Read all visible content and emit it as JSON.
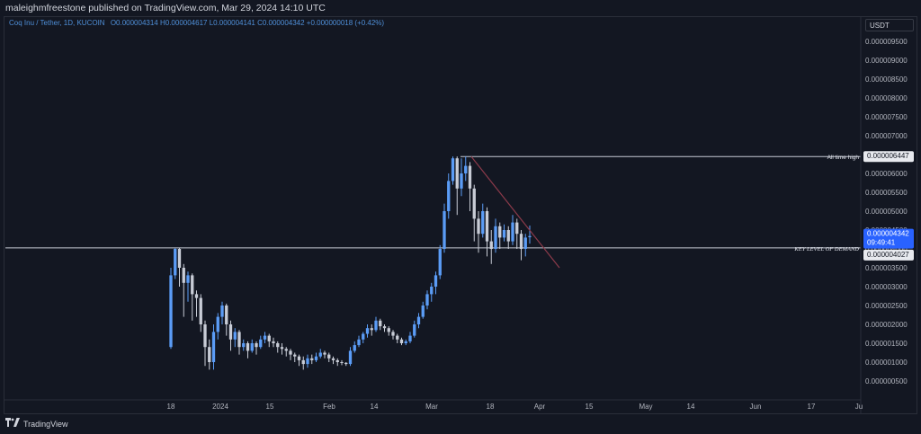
{
  "header": {
    "publisher_line": "maleighmfreestone published on TradingView.com, Mar 29, 2024 14:10 UTC"
  },
  "legend": {
    "symbol": "Coq Inu / Tether, 1D, KUCOIN",
    "values": "O0.000004314 H0.000004617 L0.000004141 C0.000004342 +0.000000018 (+0.42%)"
  },
  "currency_button": "USDT",
  "footer": {
    "brand": "TradingView"
  },
  "colors": {
    "background": "#131722",
    "candle_up": "#5b9cf6",
    "candle_down": "#c8ccd6",
    "price_label": "#2962ff",
    "trendline": "#8b3a4a",
    "hline": "#c8ccd6"
  },
  "chart_data": {
    "type": "candlestick",
    "title": "Coq Inu / Tether, 1D, KUCOIN",
    "y_axis_ticks": [
      "0.000009500",
      "0.000009000",
      "0.000008500",
      "0.000008000",
      "0.000007500",
      "0.000007000",
      "0.000006500",
      "0.000006000",
      "0.000005500",
      "0.000005000",
      "0.000004500",
      "0.000004000",
      "0.000003500",
      "0.000003000",
      "0.000002500",
      "0.000002000",
      "0.000001500",
      "0.000001000",
      "0.000000500"
    ],
    "x_axis_ticks": [
      "18",
      "2024",
      "15",
      "Feb",
      "14",
      "Mar",
      "18",
      "Apr",
      "15",
      "May",
      "14",
      "Jun",
      "17",
      "Ju"
    ],
    "ylim": [
      3e-07,
      9.8e-06
    ],
    "horizontal_lines": [
      {
        "label": "All time high",
        "value": 6.447e-06,
        "price_label": "0.000006447"
      },
      {
        "label": "KEY LEVEL OF DEMAND",
        "value": 4.027e-06,
        "price_label": "0.000004027"
      }
    ],
    "current_price": {
      "price": "0.000004342",
      "countdown": "09:49:41"
    },
    "trendline": {
      "from": [
        6.447e-06
      ],
      "to": [
        3.5e-06
      ]
    },
    "candles": [
      [
        1.4e-06,
        3.3e-06,
        3.5e-06,
        1.35e-06
      ],
      [
        3.3e-06,
        4e-06,
        4.02e-06,
        3.2e-06
      ],
      [
        4e-06,
        3.5e-06,
        4.02e-06,
        3e-06
      ],
      [
        3.5e-06,
        3.1e-06,
        3.6e-06,
        2.2e-06
      ],
      [
        3.1e-06,
        3.3e-06,
        3.4e-06,
        2.6e-06
      ],
      [
        3.3e-06,
        2.8e-06,
        3.35e-06,
        2.1e-06
      ],
      [
        2.8e-06,
        2.7e-06,
        2.9e-06,
        2.2e-06
      ],
      [
        2.7e-06,
        2e-06,
        2.8e-06,
        1.8e-06
      ],
      [
        2e-06,
        1.4e-06,
        2.1e-06,
        9e-07
      ],
      [
        1.4e-06,
        1e-06,
        1.6e-06,
        8e-07
      ],
      [
        1e-06,
        1.8e-06,
        2e-06,
        8e-07
      ],
      [
        1.8e-06,
        2.2e-06,
        2.3e-06,
        1.6e-06
      ],
      [
        2.2e-06,
        2.5e-06,
        2.6e-06,
        2e-06
      ],
      [
        2.5e-06,
        2e-06,
        2.55e-06,
        1.7e-06
      ],
      [
        2e-06,
        1.6e-06,
        2.1e-06,
        1.3e-06
      ],
      [
        1.6e-06,
        1.8e-06,
        1.9e-06,
        1.4e-06
      ],
      [
        1.8e-06,
        1.4e-06,
        1.85e-06,
        1.2e-06
      ],
      [
        1.4e-06,
        1.5e-06,
        1.6e-06,
        1.3e-06
      ],
      [
        1.5e-06,
        1.3e-06,
        1.55e-06,
        1.1e-06
      ],
      [
        1.3e-06,
        1.5e-06,
        1.6e-06,
        1.25e-06
      ],
      [
        1.5e-06,
        1.4e-06,
        1.55e-06,
        1.2e-06
      ],
      [
        1.4e-06,
        1.6e-06,
        1.7e-06,
        1.35e-06
      ],
      [
        1.6e-06,
        1.7e-06,
        1.8e-06,
        1.5e-06
      ],
      [
        1.7e-06,
        1.55e-06,
        1.75e-06,
        1.4e-06
      ],
      [
        1.55e-06,
        1.5e-06,
        1.65e-06,
        1.4e-06
      ],
      [
        1.5e-06,
        1.4e-06,
        1.55e-06,
        1.25e-06
      ],
      [
        1.4e-06,
        1.35e-06,
        1.5e-06,
        1.2e-06
      ],
      [
        1.35e-06,
        1.3e-06,
        1.4e-06,
        1.15e-06
      ],
      [
        1.3e-06,
        1.2e-06,
        1.35e-06,
        1.05e-06
      ],
      [
        1.2e-06,
        1.15e-06,
        1.25e-06,
        1e-06
      ],
      [
        1.15e-06,
        1.05e-06,
        1.2e-06,
        9e-07
      ],
      [
        1.05e-06,
        9.5e-07,
        1.15e-06,
        8e-07
      ],
      [
        9.5e-07,
        1.1e-06,
        1.2e-06,
        8.5e-07
      ],
      [
        1.1e-06,
        1.05e-06,
        1.2e-06,
        9.5e-07
      ],
      [
        1.05e-06,
        1.15e-06,
        1.25e-06,
        1e-06
      ],
      [
        1.15e-06,
        1.25e-06,
        1.35e-06,
        1.1e-06
      ],
      [
        1.25e-06,
        1.2e-06,
        1.3e-06,
        1.1e-06
      ],
      [
        1.2e-06,
        1.1e-06,
        1.25e-06,
        1e-06
      ],
      [
        1.1e-06,
        1.05e-06,
        1.15e-06,
        9.5e-07
      ],
      [
        1.05e-06,
        1e-06,
        1.1e-06,
        9e-07
      ],
      [
        1e-06,
        9.8e-07,
        1.05e-06,
        9.2e-07
      ],
      [
        9.8e-07,
        9.5e-07,
        1e-06,
        9e-07
      ],
      [
        9.5e-07,
        1.3e-06,
        1.4e-06,
        9e-07
      ],
      [
        1.3e-06,
        1.45e-06,
        1.55e-06,
        1.25e-06
      ],
      [
        1.45e-06,
        1.6e-06,
        1.7e-06,
        1.4e-06
      ],
      [
        1.6e-06,
        1.75e-06,
        1.8e-06,
        1.5e-06
      ],
      [
        1.75e-06,
        1.9e-06,
        2e-06,
        1.65e-06
      ],
      [
        1.9e-06,
        1.85e-06,
        2e-06,
        1.7e-06
      ],
      [
        1.85e-06,
        2.1e-06,
        2.2e-06,
        1.8e-06
      ],
      [
        2.1e-06,
        1.95e-06,
        2.15e-06,
        1.85e-06
      ],
      [
        1.95e-06,
        1.9e-06,
        2e-06,
        1.8e-06
      ],
      [
        1.9e-06,
        1.8e-06,
        1.95e-06,
        1.7e-06
      ],
      [
        1.8e-06,
        1.7e-06,
        1.85e-06,
        1.6e-06
      ],
      [
        1.7e-06,
        1.6e-06,
        1.75e-06,
        1.5e-06
      ],
      [
        1.6e-06,
        1.5e-06,
        1.65e-06,
        1.45e-06
      ],
      [
        1.5e-06,
        1.55e-06,
        1.6e-06,
        1.45e-06
      ],
      [
        1.55e-06,
        1.7e-06,
        1.8e-06,
        1.5e-06
      ],
      [
        1.7e-06,
        2e-06,
        2.1e-06,
        1.65e-06
      ],
      [
        2e-06,
        2.2e-06,
        2.3e-06,
        1.9e-06
      ],
      [
        2.2e-06,
        2.5e-06,
        2.6e-06,
        2.15e-06
      ],
      [
        2.5e-06,
        2.8e-06,
        2.9e-06,
        2.4e-06
      ],
      [
        2.8e-06,
        3e-06,
        3.1e-06,
        2.6e-06
      ],
      [
        3e-06,
        3.3e-06,
        3.4e-06,
        2.8e-06
      ],
      [
        3.3e-06,
        4e-06,
        4.1e-06,
        3.2e-06
      ],
      [
        4e-06,
        5e-06,
        5.2e-06,
        3.9e-06
      ],
      [
        5e-06,
        5.8e-06,
        6e-06,
        4.8e-06
      ],
      [
        5.8e-06,
        6.4e-06,
        6.45e-06,
        5.7e-06
      ],
      [
        6.4e-06,
        5.6e-06,
        6.45e-06,
        4.9e-06
      ],
      [
        5.6e-06,
        6e-06,
        6.4e-06,
        5.4e-06
      ],
      [
        6e-06,
        6.2e-06,
        6.45e-06,
        5.8e-06
      ],
      [
        6.2e-06,
        5.6e-06,
        6.3e-06,
        5e-06
      ],
      [
        5.6e-06,
        4.8e-06,
        5.7e-06,
        4.2e-06
      ],
      [
        4.8e-06,
        4.4e-06,
        5e-06,
        3.9e-06
      ],
      [
        4.4e-06,
        5e-06,
        5.2e-06,
        4.3e-06
      ],
      [
        5e-06,
        4.2e-06,
        5.1e-06,
        3.8e-06
      ],
      [
        4.2e-06,
        4e-06,
        4.5e-06,
        3.6e-06
      ],
      [
        4e-06,
        4.6e-06,
        4.8e-06,
        3.9e-06
      ],
      [
        4.6e-06,
        4.3e-06,
        4.7e-06,
        4e-06
      ],
      [
        4.3e-06,
        4.5e-06,
        4.65e-06,
        4.2e-06
      ],
      [
        4.5e-06,
        4.2e-06,
        4.6e-06,
        4e-06
      ],
      [
        4.2e-06,
        4.7e-06,
        4.9e-06,
        4.1e-06
      ],
      [
        4.7e-06,
        4.4e-06,
        4.8e-06,
        4e-06
      ],
      [
        4.4e-06,
        4e-06,
        4.5e-06,
        3.7e-06
      ],
      [
        4e-06,
        4.3e-06,
        4.4e-06,
        3.8e-06
      ],
      [
        4.31e-06,
        4.34e-06,
        4.62e-06,
        4.14e-06
      ]
    ]
  }
}
